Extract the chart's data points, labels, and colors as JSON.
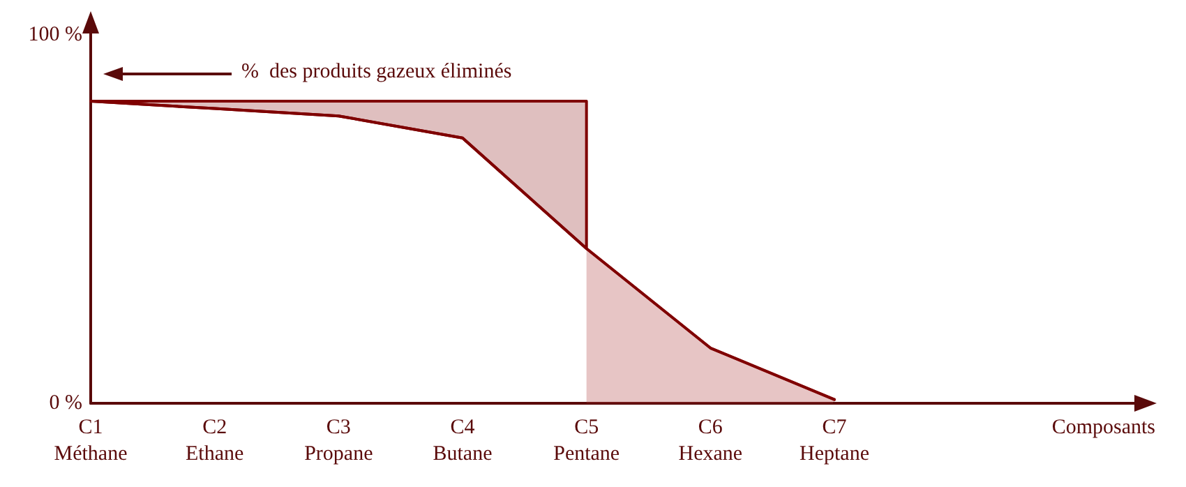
{
  "chart_data": {
    "type": "line",
    "categories": [
      "C1\nMéthane",
      "C2\nEthane",
      "C3\nPropane",
      "C4\nButane",
      "C5\nPentane",
      "C6\nHexane",
      "C7\nHeptane"
    ],
    "ylim": [
      0,
      100
    ],
    "yticks": [
      {
        "value": 0,
        "label": "0 %"
      },
      {
        "value": 100,
        "label": "100 %"
      }
    ],
    "marker": "none",
    "line_style": "solid",
    "annotations": [
      "%  des produits gazeux éliminés",
      "Composants"
    ],
    "series": [
      {
        "color": "#7f0000",
        "values": [
          82,
          80,
          78,
          72,
          42,
          15,
          1
        ],
        "lower": [
          82,
          80,
          78,
          72,
          42,
          null,
          null
        ],
        "upper": [
          82,
          82,
          82,
          82,
          82,
          null,
          null
        ]
      },
      {
        "type": "area",
        "color": "#b04040",
        "values": [
          null,
          null,
          null,
          null,
          42,
          15,
          1
        ]
      }
    ]
  }
}
